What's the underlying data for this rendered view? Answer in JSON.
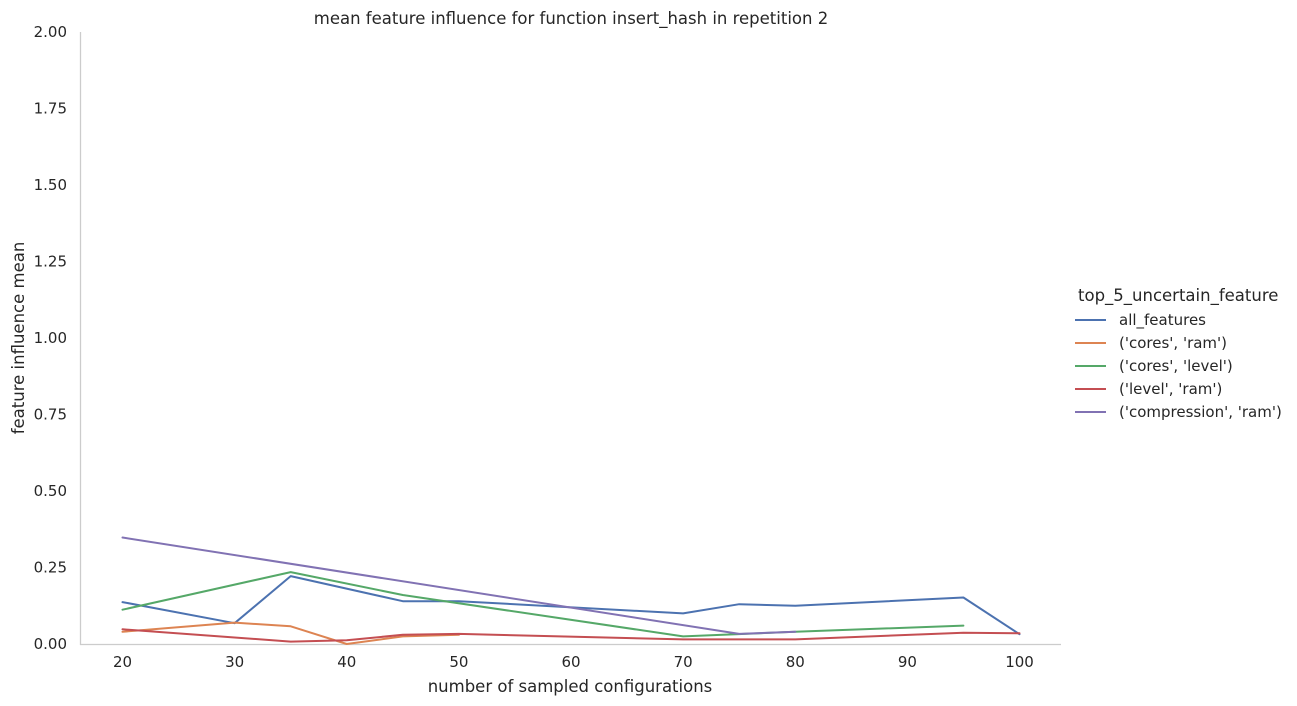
{
  "chart_data": {
    "type": "line",
    "title": "mean feature influence for function insert_hash in repetition 2",
    "xlabel": "number of sampled configurations",
    "ylabel": "feature influence mean",
    "xlim": [
      16.3,
      103.7
    ],
    "ylim": [
      0,
      2
    ],
    "xticks": [
      20,
      30,
      40,
      50,
      60,
      70,
      80,
      90,
      100
    ],
    "yticks": [
      0,
      0.25,
      0.5,
      0.75,
      1.0,
      1.25,
      1.5,
      1.75,
      2.0
    ],
    "xtick_labels": [
      "20",
      "30",
      "40",
      "50",
      "60",
      "70",
      "80",
      "90",
      "100"
    ],
    "ytick_labels": [
      "0.00",
      "0.25",
      "0.50",
      "0.75",
      "1.00",
      "1.25",
      "1.50",
      "1.75",
      "2.00"
    ],
    "grid": false,
    "legend_title": "top_5_uncertain_feature",
    "legend_position": "center-right outside",
    "series": [
      {
        "name": "all_features",
        "color": "#4c72b0",
        "x": [
          20,
          30,
          35,
          45,
          50,
          70,
          75,
          80,
          95,
          100
        ],
        "y": [
          0.137,
          0.068,
          0.222,
          0.14,
          0.14,
          0.1,
          0.13,
          0.125,
          0.152,
          0.032
        ]
      },
      {
        "name": "('cores', 'ram')",
        "color": "#dd8452",
        "x": [
          20,
          30,
          35,
          40,
          45,
          50
        ],
        "y": [
          0.04,
          0.07,
          0.058,
          0.0,
          0.025,
          0.03
        ]
      },
      {
        "name": "('cores', 'level')",
        "color": "#55a868",
        "x": [
          20,
          35,
          45,
          70,
          80,
          95
        ],
        "y": [
          0.112,
          0.235,
          0.16,
          0.025,
          0.04,
          0.06
        ]
      },
      {
        "name": "('level', 'ram')",
        "color": "#c44e52",
        "x": [
          20,
          35,
          40,
          45,
          50,
          70,
          75,
          80,
          95,
          100
        ],
        "y": [
          0.048,
          0.008,
          0.012,
          0.03,
          0.033,
          0.015,
          0.015,
          0.015,
          0.037,
          0.035
        ]
      },
      {
        "name": "('compression', 'ram')",
        "color": "#8172b3",
        "x": [
          20,
          75,
          80
        ],
        "y": [
          0.348,
          0.033,
          0.04
        ]
      }
    ]
  }
}
